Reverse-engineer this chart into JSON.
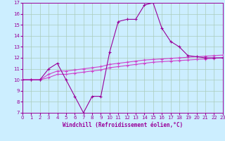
{
  "xlabel": "Windchill (Refroidissement éolien,°C)",
  "x": [
    0,
    1,
    2,
    3,
    4,
    5,
    6,
    7,
    8,
    9,
    10,
    11,
    12,
    13,
    14,
    15,
    16,
    17,
    18,
    19,
    20,
    21,
    22,
    23
  ],
  "y_main": [
    10,
    10,
    10,
    11,
    11.5,
    10,
    8.5,
    7,
    8.5,
    8.5,
    12.5,
    15.3,
    15.5,
    15.5,
    16.8,
    17,
    14.7,
    13.5,
    13,
    12.2,
    12.1,
    12,
    12,
    12
  ],
  "y_line1": [
    10,
    10,
    10,
    10.5,
    10.8,
    10.8,
    10.9,
    11.0,
    11.1,
    11.2,
    11.4,
    11.5,
    11.6,
    11.7,
    11.8,
    11.85,
    11.9,
    11.95,
    12.0,
    12.05,
    12.1,
    12.15,
    12.2,
    12.25
  ],
  "y_line2": [
    10,
    10,
    10,
    10.2,
    10.5,
    10.5,
    10.6,
    10.7,
    10.8,
    10.9,
    11.1,
    11.2,
    11.3,
    11.4,
    11.5,
    11.6,
    11.65,
    11.7,
    11.75,
    11.8,
    11.85,
    11.9,
    11.95,
    12.0
  ],
  "ylim": [
    7,
    17
  ],
  "xlim": [
    0,
    23
  ],
  "yticks": [
    7,
    8,
    9,
    10,
    11,
    12,
    13,
    14,
    15,
    16,
    17
  ],
  "color_main": "#990099",
  "color_line1": "#cc44cc",
  "color_line2": "#cc44cc",
  "bg_color": "#cceeff",
  "grid_color": "#aaccbb",
  "tick_color": "#990099",
  "label_color": "#990099",
  "marker": "+",
  "markersize": 3.5,
  "markeredgewidth": 0.8,
  "linewidth": 0.8,
  "tick_fontsize": 5,
  "xlabel_fontsize": 5.5
}
